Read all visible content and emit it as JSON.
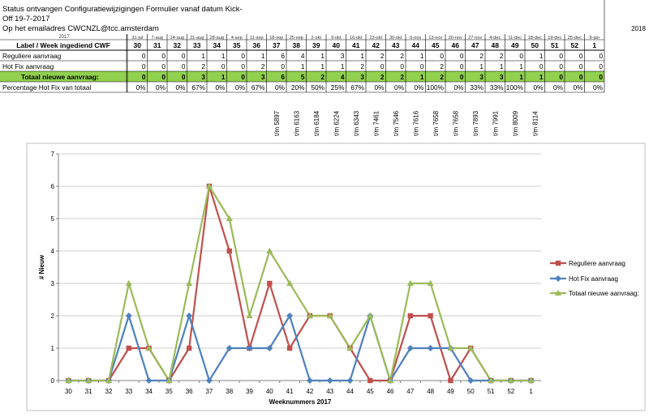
{
  "sheet": {
    "title_line1": "Status ontvangen Configuratiewijzigingen Formulier vanaf datum Kick-",
    "title_line2": "Off 19-7-2017",
    "title_line3": "Op het emailadres CWCNZL@tcc.amsterdam",
    "year_2017": "2017",
    "year_2018": "2018",
    "label_header": "Label / Week ingediend CWF",
    "dates": [
      "31-jul",
      "7-aug",
      "14-aug",
      "21-aug",
      "28-aug",
      "4-sep",
      "11-sep",
      "18-sep",
      "25-sep",
      "2-okt",
      "9-okt",
      "16-okt",
      "23-okt",
      "30-okt",
      "6-nov",
      "13-nov",
      "20-nov",
      "27-nov",
      "4-dec",
      "11-dec",
      "18-dec",
      "19-dec",
      "25-dec",
      "8-jan"
    ],
    "weeks": [
      "30",
      "31",
      "32",
      "33",
      "34",
      "35",
      "36",
      "37",
      "38",
      "39",
      "40",
      "41",
      "42",
      "43",
      "44",
      "45",
      "46",
      "47",
      "48",
      "49",
      "50",
      "51",
      "52",
      "1"
    ],
    "rows": [
      {
        "label": "Reguliere aanvraag",
        "values": [
          "0",
          "0",
          "0",
          "1",
          "1",
          "0",
          "1",
          "6",
          "4",
          "1",
          "3",
          "1",
          "2",
          "2",
          "1",
          "0",
          "0",
          "2",
          "2",
          "0",
          "1",
          "0",
          "0",
          "0"
        ]
      },
      {
        "label": "Hot Fix  aanvraag",
        "values": [
          "0",
          "0",
          "0",
          "2",
          "0",
          "0",
          "2",
          "0",
          "1",
          "1",
          "1",
          "2",
          "0",
          "0",
          "0",
          "2",
          "0",
          "1",
          "1",
          "1",
          "0",
          "0",
          "0",
          "0"
        ]
      },
      {
        "label": "Totaal nieuwe aanvraag:",
        "values": [
          "0",
          "0",
          "0",
          "3",
          "1",
          "0",
          "3",
          "6",
          "5",
          "2",
          "4",
          "3",
          "2",
          "2",
          "1",
          "2",
          "0",
          "3",
          "3",
          "1",
          "1",
          "0",
          "0",
          "0"
        ]
      },
      {
        "label": "Percentage Hot Fix van totaal",
        "values": [
          "0%",
          "0%",
          "0%",
          "67%",
          "0%",
          "0%",
          "67%",
          "0%",
          "20%",
          "50%",
          "25%",
          "67%",
          "0%",
          "0%",
          "0%",
          "100%",
          "0%",
          "33%",
          "33%",
          "100%",
          "0%",
          "0%",
          "0%",
          "0%"
        ]
      }
    ],
    "tm_labels": [
      "",
      "",
      "",
      "",
      "",
      "",
      "",
      "t/m 5897",
      "t/m 6163",
      "t/m 6184",
      "t/m 6224",
      "t/m 6343",
      "t/m 7461",
      "t/m 7546",
      "t/m 7616",
      "t/m 7658",
      "t/m 7658",
      "t/m 7893",
      "t/m 7991",
      "t/m 8009",
      "t/m 8114",
      "",
      "",
      ""
    ]
  },
  "colors": {
    "reguliere": "#c0504d",
    "hotfix": "#4f81bd",
    "totaal": "#9bbb59",
    "total_row_bg": "#92d050",
    "grid": "#bfbfbf"
  },
  "chart_data": {
    "type": "line",
    "categories": [
      "30",
      "31",
      "32",
      "33",
      "34",
      "35",
      "36",
      "37",
      "38",
      "39",
      "40",
      "41",
      "42",
      "43",
      "44",
      "45",
      "46",
      "47",
      "48",
      "49",
      "50",
      "51",
      "52",
      "1"
    ],
    "series": [
      {
        "name": "Reguliere aanvraag",
        "values": [
          0,
          0,
          0,
          1,
          1,
          0,
          1,
          6,
          4,
          1,
          3,
          1,
          2,
          2,
          1,
          0,
          0,
          2,
          2,
          0,
          1,
          0,
          0,
          0
        ]
      },
      {
        "name": "Hot Fix  aanvraag",
        "values": [
          0,
          0,
          0,
          2,
          0,
          0,
          2,
          0,
          1,
          1,
          1,
          2,
          0,
          0,
          0,
          2,
          0,
          1,
          1,
          1,
          0,
          0,
          0,
          0
        ]
      },
      {
        "name": "Totaal nieuwe aanvraag:",
        "values": [
          0,
          0,
          0,
          3,
          1,
          0,
          3,
          6,
          5,
          2,
          4,
          3,
          2,
          2,
          1,
          2,
          0,
          3,
          3,
          1,
          1,
          0,
          0,
          0
        ]
      }
    ],
    "xlabel": "Weeknummers 2017",
    "ylabel": "# Nieuw",
    "ylim": [
      0,
      7
    ],
    "yticks": [
      "0",
      "1",
      "2",
      "3",
      "4",
      "5",
      "6",
      "7"
    ],
    "grid": true,
    "legend": "right"
  }
}
